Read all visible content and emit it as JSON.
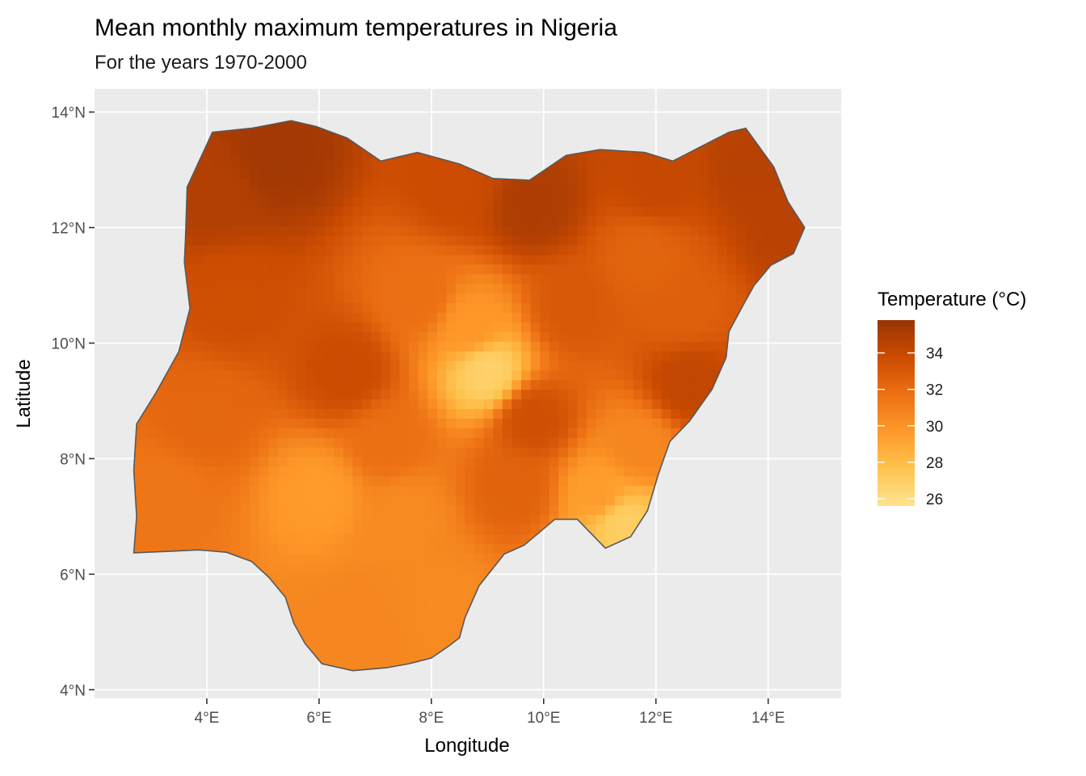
{
  "chart_data": {
    "type": "heatmap",
    "title": "Mean monthly maximum temperatures in Nigeria",
    "subtitle": "For the years 1970-2000",
    "xlabel": "Longitude",
    "ylabel": "Latitude",
    "xlim": [
      2.0,
      15.3
    ],
    "ylim": [
      3.85,
      14.4
    ],
    "x_ticks": [
      {
        "value": 4,
        "label": "4°E"
      },
      {
        "value": 6,
        "label": "6°E"
      },
      {
        "value": 8,
        "label": "8°E"
      },
      {
        "value": 10,
        "label": "10°E"
      },
      {
        "value": 12,
        "label": "12°E"
      },
      {
        "value": 14,
        "label": "14°E"
      }
    ],
    "y_ticks": [
      {
        "value": 4,
        "label": "4°N"
      },
      {
        "value": 6,
        "label": "6°N"
      },
      {
        "value": 8,
        "label": "8°N"
      },
      {
        "value": 10,
        "label": "10°N"
      },
      {
        "value": 12,
        "label": "12°N"
      },
      {
        "value": 14,
        "label": "14°N"
      }
    ],
    "grid": true,
    "panel_background": "#ebebeb",
    "grid_color": "#ffffff",
    "outline_color": "#595959",
    "legend": {
      "title": "Temperature (°C)",
      "position": "right",
      "min": 25.6,
      "max": 35.8,
      "breaks": [
        34,
        32,
        30,
        28,
        26
      ],
      "break_labels": [
        "34",
        "32",
        "30",
        "28",
        "26"
      ],
      "colors": [
        "#fee391",
        "#fec44f",
        "#fe9929",
        "#ec7014",
        "#cc4c02",
        "#993404"
      ]
    },
    "boundary": [
      [
        2.7,
        6.37
      ],
      [
        3.4,
        6.4
      ],
      [
        3.85,
        6.42
      ],
      [
        4.35,
        6.38
      ],
      [
        4.8,
        6.22
      ],
      [
        5.1,
        5.95
      ],
      [
        5.4,
        5.6
      ],
      [
        5.55,
        5.15
      ],
      [
        5.75,
        4.8
      ],
      [
        6.05,
        4.45
      ],
      [
        6.6,
        4.33
      ],
      [
        7.2,
        4.38
      ],
      [
        7.6,
        4.45
      ],
      [
        8.0,
        4.55
      ],
      [
        8.3,
        4.75
      ],
      [
        8.5,
        4.9
      ],
      [
        8.6,
        5.25
      ],
      [
        8.85,
        5.8
      ],
      [
        9.3,
        6.35
      ],
      [
        9.65,
        6.5
      ],
      [
        10.2,
        6.95
      ],
      [
        10.6,
        6.95
      ],
      [
        11.1,
        6.45
      ],
      [
        11.55,
        6.65
      ],
      [
        11.85,
        7.1
      ],
      [
        12.05,
        7.75
      ],
      [
        12.25,
        8.3
      ],
      [
        12.6,
        8.65
      ],
      [
        13.0,
        9.2
      ],
      [
        13.25,
        9.75
      ],
      [
        13.3,
        10.2
      ],
      [
        13.55,
        10.65
      ],
      [
        13.75,
        11.0
      ],
      [
        14.05,
        11.35
      ],
      [
        14.45,
        11.55
      ],
      [
        14.65,
        12.0
      ],
      [
        14.35,
        12.45
      ],
      [
        14.1,
        13.05
      ],
      [
        13.6,
        13.72
      ],
      [
        13.3,
        13.65
      ],
      [
        12.8,
        13.4
      ],
      [
        12.3,
        13.15
      ],
      [
        11.8,
        13.3
      ],
      [
        11.0,
        13.35
      ],
      [
        10.4,
        13.25
      ],
      [
        9.75,
        12.82
      ],
      [
        9.1,
        12.85
      ],
      [
        8.5,
        13.1
      ],
      [
        7.75,
        13.3
      ],
      [
        7.1,
        13.15
      ],
      [
        6.5,
        13.55
      ],
      [
        5.95,
        13.75
      ],
      [
        5.5,
        13.85
      ],
      [
        4.8,
        13.72
      ],
      [
        4.1,
        13.65
      ],
      [
        3.65,
        12.7
      ],
      [
        3.62,
        11.8
      ],
      [
        3.6,
        11.4
      ],
      [
        3.7,
        10.6
      ],
      [
        3.5,
        9.85
      ],
      [
        3.1,
        9.15
      ],
      [
        2.75,
        8.6
      ],
      [
        2.7,
        7.8
      ],
      [
        2.75,
        7.0
      ],
      [
        2.7,
        6.37
      ]
    ],
    "anchors": [
      {
        "lon": 5.2,
        "lat": 13.2,
        "temp": 35.4
      },
      {
        "lon": 4.2,
        "lat": 12.6,
        "temp": 34.8
      },
      {
        "lon": 9.8,
        "lat": 12.4,
        "temp": 35.0
      },
      {
        "lon": 8.5,
        "lat": 12.7,
        "temp": 33.8
      },
      {
        "lon": 12.0,
        "lat": 12.8,
        "temp": 34.0
      },
      {
        "lon": 13.8,
        "lat": 13.0,
        "temp": 34.6
      },
      {
        "lon": 14.4,
        "lat": 11.9,
        "temp": 34.5
      },
      {
        "lon": 11.8,
        "lat": 11.5,
        "temp": 32.4
      },
      {
        "lon": 12.5,
        "lat": 10.6,
        "temp": 32.6
      },
      {
        "lon": 6.5,
        "lat": 9.5,
        "temp": 33.8
      },
      {
        "lon": 7.8,
        "lat": 10.8,
        "temp": 31.8
      },
      {
        "lon": 9.0,
        "lat": 9.5,
        "temp": 26.8
      },
      {
        "lon": 8.7,
        "lat": 10.3,
        "temp": 29.8
      },
      {
        "lon": 9.8,
        "lat": 8.7,
        "temp": 33.6
      },
      {
        "lon": 12.6,
        "lat": 9.3,
        "temp": 34.2
      },
      {
        "lon": 11.7,
        "lat": 8.2,
        "temp": 30.6
      },
      {
        "lon": 11.4,
        "lat": 6.9,
        "temp": 27.0
      },
      {
        "lon": 11.0,
        "lat": 7.4,
        "temp": 29.5
      },
      {
        "lon": 6.0,
        "lat": 7.4,
        "temp": 29.6
      },
      {
        "lon": 3.3,
        "lat": 7.3,
        "temp": 31.4
      },
      {
        "lon": 4.0,
        "lat": 8.7,
        "temp": 32.2
      },
      {
        "lon": 7.5,
        "lat": 7.0,
        "temp": 30.4
      },
      {
        "lon": 6.7,
        "lat": 5.2,
        "temp": 30.6
      },
      {
        "lon": 8.2,
        "lat": 5.5,
        "temp": 30.4
      },
      {
        "lon": 9.5,
        "lat": 7.5,
        "temp": 32.5
      },
      {
        "lon": 4.5,
        "lat": 10.8,
        "temp": 33.6
      },
      {
        "lon": 10.5,
        "lat": 10.6,
        "temp": 33.0
      },
      {
        "lon": 7.2,
        "lat": 8.3,
        "temp": 31.8
      }
    ]
  }
}
